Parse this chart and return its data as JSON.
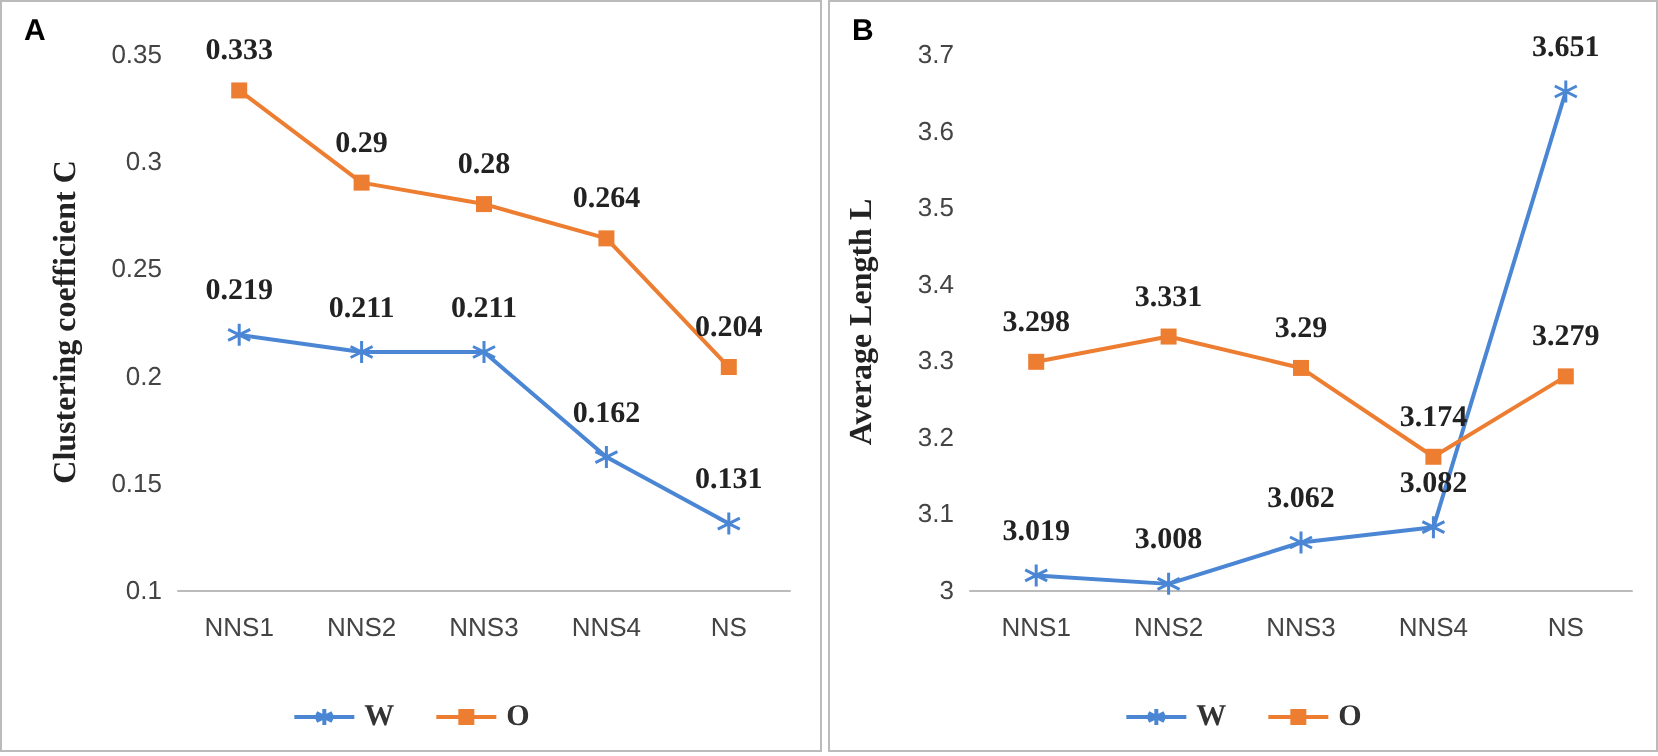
{
  "chart_data": [
    {
      "type": "line",
      "title": "A",
      "ylabel": "Clustering coefficient C",
      "categories": [
        "NNS1",
        "NNS2",
        "NNS3",
        "NNS4",
        "NS"
      ],
      "series": [
        {
          "name": "W",
          "color": "#4a86d4",
          "marker": "cross",
          "values": [
            0.219,
            0.211,
            0.211,
            0.162,
            0.131
          ]
        },
        {
          "name": "O",
          "color": "#ed7d31",
          "marker": "square",
          "values": [
            0.333,
            0.29,
            0.28,
            0.264,
            0.204
          ]
        }
      ],
      "ylim": [
        0.1,
        0.35
      ],
      "yticks": [
        0.1,
        0.15,
        0.2,
        0.25,
        0.3,
        0.35
      ],
      "data_labels": true,
      "legend": "bottom",
      "grid": false
    },
    {
      "type": "line",
      "title": "B",
      "ylabel": "Average Length L",
      "categories": [
        "NNS1",
        "NNS2",
        "NNS3",
        "NNS4",
        "NS"
      ],
      "series": [
        {
          "name": "W",
          "color": "#4a86d4",
          "marker": "cross",
          "values": [
            3.019,
            3.008,
            3.062,
            3.082,
            3.651
          ]
        },
        {
          "name": "O",
          "color": "#ed7d31",
          "marker": "square",
          "values": [
            3.298,
            3.331,
            3.29,
            3.174,
            3.279
          ]
        }
      ],
      "ylim": [
        3,
        3.7
      ],
      "yticks": [
        3,
        3.1,
        3.2,
        3.3,
        3.4,
        3.5,
        3.6,
        3.7
      ],
      "data_labels": true,
      "legend": "bottom",
      "grid": false
    }
  ]
}
